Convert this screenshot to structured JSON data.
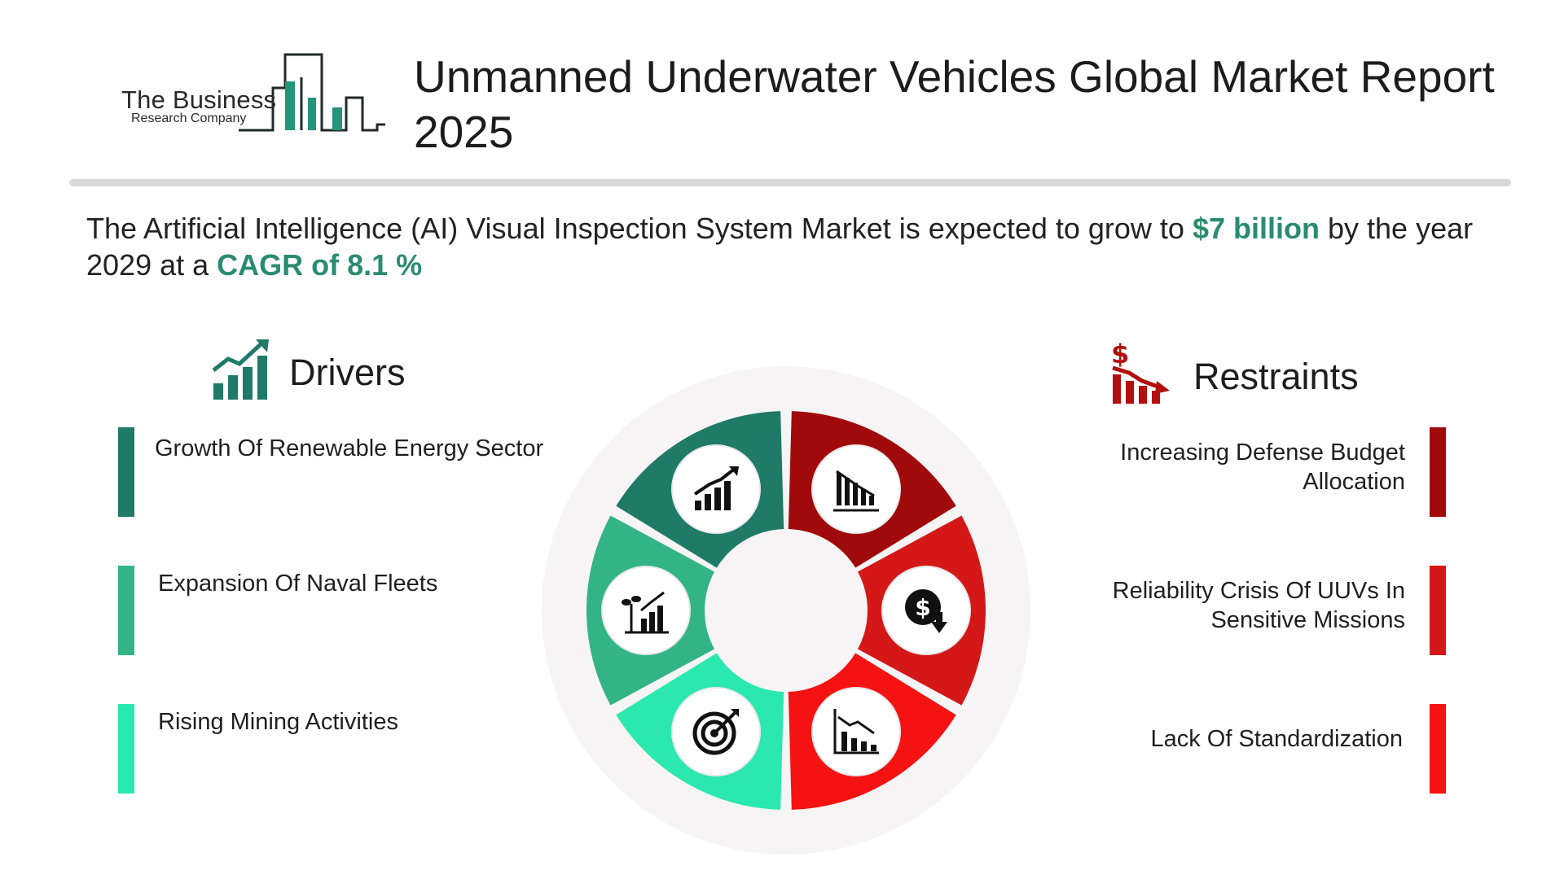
{
  "logo": {
    "line1": "The Business",
    "line2": "Research Company",
    "accent_color": "#22957a"
  },
  "title": "Unmanned Underwater Vehicles Global Market Report 2025",
  "summary": {
    "part1": "The Artificial Intelligence (AI) Visual Inspection System Market is expected to grow to ",
    "value": "$7 billion",
    "part2": " by the year 2029 at a ",
    "cagr": "CAGR of 8.1 %"
  },
  "drivers": {
    "heading": "Drivers",
    "icon": "growth-chart-icon",
    "items": [
      {
        "label": "Growth Of Renewable Energy Sector",
        "color": "#1f7a68"
      },
      {
        "label": "Expansion Of Naval Fleets",
        "color": "#33b487"
      },
      {
        "label": "Rising Mining Activities",
        "color": "#2ae8b0"
      }
    ]
  },
  "restraints": {
    "heading": "Restraints",
    "icon": "declining-dollar-chart-icon",
    "items": [
      {
        "label": "Increasing Defense Budget Allocation",
        "color": "#a00a0a"
      },
      {
        "label": "Reliability Crisis Of UUVs In Sensitive Missions",
        "color": "#d41818"
      },
      {
        "label": "Lack Of Standardization",
        "color": "#f51212"
      }
    ]
  },
  "wheel": {
    "icons": [
      "rising-bar-chart-icon",
      "falling-bar-chart-icon",
      "dollar-down-icon",
      "declining-chart-icon",
      "target-icon",
      "plant-growth-chart-icon"
    ]
  }
}
